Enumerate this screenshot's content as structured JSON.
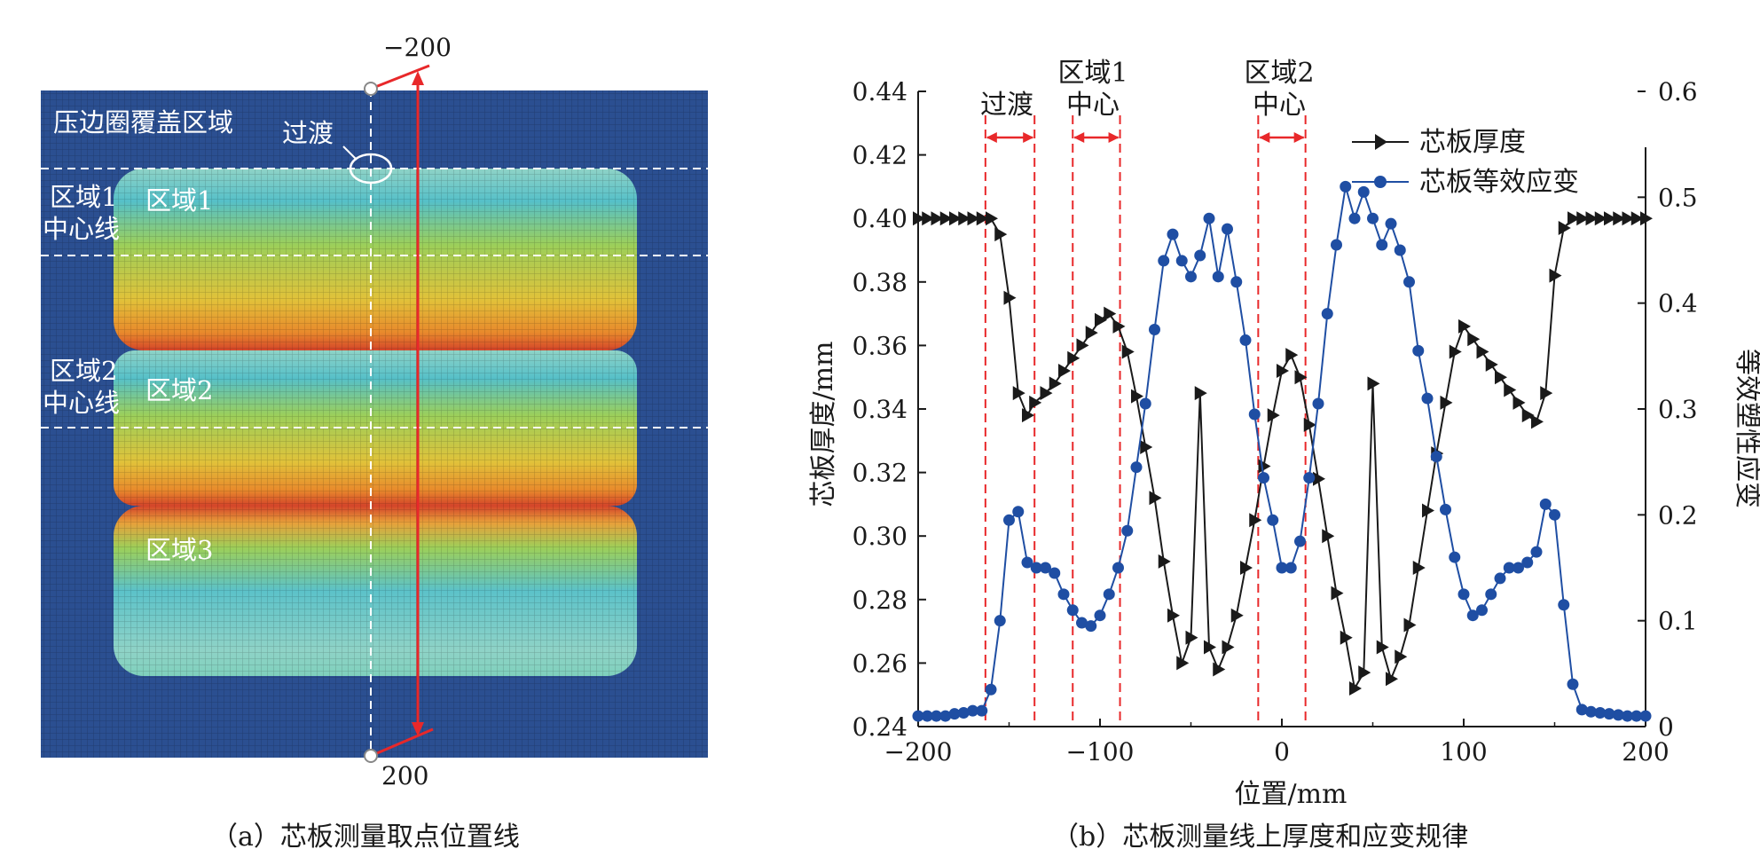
{
  "panel_a": {
    "caption": "（a）芯板测量取点位置线",
    "top_label": "−200",
    "bottom_label": "200",
    "labels": {
      "cover_region": "压边圈覆盖区域",
      "transition": "过渡",
      "zone1_centerline_l1": "区域1",
      "zone1_centerline_l2": "中心线",
      "zone1": "区域1",
      "zone2_centerline_l1": "区域2",
      "zone2_centerline_l2": "中心线",
      "zone2": "区域2",
      "zone3": "区域3"
    },
    "colors": {
      "background": "#2b4f91",
      "line": "#e8282a"
    }
  },
  "panel_b": {
    "caption": "（b）芯板测量线上厚度和应变规律"
  },
  "chart_data": {
    "type": "line",
    "xlabel": "位置/mm",
    "ylabel": "芯板厚度/mm",
    "y2label": "等效塑性应变",
    "xlim": [
      -200,
      200
    ],
    "ylim": [
      0.24,
      0.44
    ],
    "y2lim": [
      0,
      0.6
    ],
    "xticks": [
      "−200",
      "−100",
      "0",
      "100",
      "200"
    ],
    "yticks": [
      "0.24",
      "0.26",
      "0.28",
      "0.30",
      "0.32",
      "0.34",
      "0.36",
      "0.38",
      "0.40",
      "0.42",
      "0.44"
    ],
    "y2ticks": [
      "0",
      "0.1",
      "0.2",
      "0.3",
      "0.4",
      "0.5",
      "0.6"
    ],
    "legend_position": "top-right",
    "annotations": {
      "transition": "过渡",
      "zone1_l1": "区域1",
      "zone1_l2": "中心",
      "zone2_l1": "区域2",
      "zone2_l2": "中心"
    },
    "vlines": [
      -163,
      -136,
      -115,
      -89,
      -13,
      13
    ],
    "series": [
      {
        "name": "芯板厚度",
        "axis": "left",
        "color": "#1a1a1a",
        "marker": "triangle-right",
        "x": [
          -200,
          -195,
          -190,
          -185,
          -180,
          -175,
          -170,
          -165,
          -160,
          -155,
          -150,
          -145,
          -140,
          -136,
          -130,
          -125,
          -120,
          -115,
          -110,
          -105,
          -100,
          -95,
          -90,
          -85,
          -80,
          -75,
          -70,
          -65,
          -60,
          -55,
          -50,
          -45,
          -40,
          -35,
          -30,
          -25,
          -20,
          -15,
          -10,
          -5,
          0,
          5,
          10,
          15,
          20,
          25,
          30,
          35,
          40,
          45,
          50,
          55,
          60,
          65,
          70,
          75,
          80,
          85,
          90,
          95,
          100,
          105,
          110,
          115,
          120,
          125,
          130,
          135,
          140,
          145,
          150,
          155,
          160,
          165,
          170,
          175,
          180,
          185,
          190,
          195,
          200
        ],
        "y": [
          0.4,
          0.4,
          0.4,
          0.4,
          0.4,
          0.4,
          0.4,
          0.4,
          0.4,
          0.395,
          0.375,
          0.345,
          0.338,
          0.342,
          0.345,
          0.348,
          0.352,
          0.356,
          0.36,
          0.364,
          0.368,
          0.37,
          0.366,
          0.358,
          0.344,
          0.328,
          0.312,
          0.292,
          0.275,
          0.26,
          0.268,
          0.345,
          0.265,
          0.258,
          0.265,
          0.275,
          0.29,
          0.305,
          0.322,
          0.338,
          0.352,
          0.357,
          0.35,
          0.335,
          0.318,
          0.3,
          0.282,
          0.268,
          0.252,
          0.257,
          0.348,
          0.265,
          0.255,
          0.262,
          0.272,
          0.29,
          0.308,
          0.326,
          0.342,
          0.358,
          0.366,
          0.362,
          0.358,
          0.354,
          0.35,
          0.346,
          0.342,
          0.338,
          0.336,
          0.345,
          0.382,
          0.397,
          0.4,
          0.4,
          0.4,
          0.4,
          0.4,
          0.4,
          0.4,
          0.4,
          0.4
        ]
      },
      {
        "name": "芯板等效应变",
        "axis": "right",
        "color": "#1f4ea3",
        "marker": "circle",
        "x": [
          -200,
          -195,
          -190,
          -185,
          -180,
          -175,
          -170,
          -165,
          -160,
          -155,
          -150,
          -145,
          -140,
          -135,
          -130,
          -125,
          -120,
          -115,
          -110,
          -105,
          -100,
          -95,
          -90,
          -85,
          -80,
          -75,
          -70,
          -65,
          -60,
          -55,
          -50,
          -45,
          -40,
          -35,
          -30,
          -25,
          -20,
          -15,
          -10,
          -5,
          0,
          5,
          10,
          15,
          20,
          25,
          30,
          35,
          40,
          45,
          50,
          55,
          60,
          65,
          70,
          75,
          80,
          85,
          90,
          95,
          100,
          105,
          110,
          115,
          120,
          125,
          130,
          135,
          140,
          145,
          150,
          155,
          160,
          165,
          170,
          175,
          180,
          185,
          190,
          195,
          200
        ],
        "y": [
          0.01,
          0.01,
          0.01,
          0.01,
          0.012,
          0.013,
          0.015,
          0.015,
          0.035,
          0.1,
          0.195,
          0.203,
          0.155,
          0.15,
          0.15,
          0.145,
          0.125,
          0.11,
          0.098,
          0.095,
          0.105,
          0.125,
          0.15,
          0.185,
          0.245,
          0.305,
          0.375,
          0.44,
          0.465,
          0.44,
          0.425,
          0.445,
          0.48,
          0.425,
          0.47,
          0.42,
          0.365,
          0.295,
          0.235,
          0.195,
          0.15,
          0.15,
          0.175,
          0.235,
          0.305,
          0.39,
          0.455,
          0.51,
          0.48,
          0.505,
          0.48,
          0.455,
          0.475,
          0.45,
          0.42,
          0.355,
          0.31,
          0.255,
          0.205,
          0.16,
          0.125,
          0.105,
          0.11,
          0.125,
          0.14,
          0.15,
          0.15,
          0.155,
          0.165,
          0.21,
          0.2,
          0.115,
          0.04,
          0.016,
          0.014,
          0.013,
          0.012,
          0.011,
          0.01,
          0.01,
          0.01
        ]
      }
    ]
  }
}
